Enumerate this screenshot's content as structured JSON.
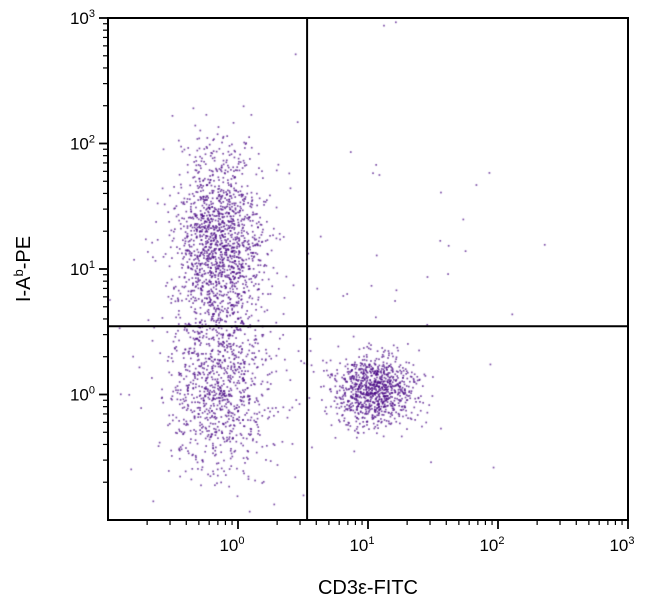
{
  "chart_data": {
    "type": "scatter",
    "title": "",
    "xlabel": "CD3ε-FITC",
    "ylabel": "I-A^b-PE",
    "ylabel_parts": {
      "pre": "I-A",
      "sup": "b",
      "post": "-PE"
    },
    "x_scale": "log",
    "y_scale": "log",
    "x_range_log": [
      -1,
      3
    ],
    "y_range_log": [
      -1,
      3
    ],
    "x_tick_exponents": [
      0,
      1,
      2,
      3
    ],
    "y_tick_exponents": [
      0,
      1,
      2,
      3
    ],
    "tick_label_base": "10",
    "quadrant_gate": {
      "x": 3.4,
      "y": 3.5
    },
    "point_color": "#4a0a85",
    "frame_color": "#000000",
    "grid": false,
    "legend": "none",
    "populations": [
      {
        "name": "MHC-II-positive CD3-negative (upper left)",
        "count": 1500,
        "log_mean": [
          -0.15,
          1.2
        ],
        "log_sd": [
          0.17,
          0.38
        ]
      },
      {
        "name": "double-negative (lower left)",
        "count": 900,
        "log_mean": [
          -0.15,
          0.05
        ],
        "log_sd": [
          0.2,
          0.33
        ]
      },
      {
        "name": "CD3-positive T cells (lower right)",
        "count": 950,
        "log_mean": [
          1.05,
          0.03
        ],
        "log_sd": [
          0.16,
          0.14
        ]
      },
      {
        "name": "diffuse background",
        "count": 140,
        "log_mean": [
          0.0,
          0.8
        ],
        "log_sd": [
          0.8,
          0.9
        ]
      },
      {
        "name": "sparse upper right",
        "count": 8,
        "log_mean": [
          1.8,
          1.6
        ],
        "log_sd": [
          0.5,
          0.4
        ]
      }
    ],
    "random_seed": 42
  }
}
